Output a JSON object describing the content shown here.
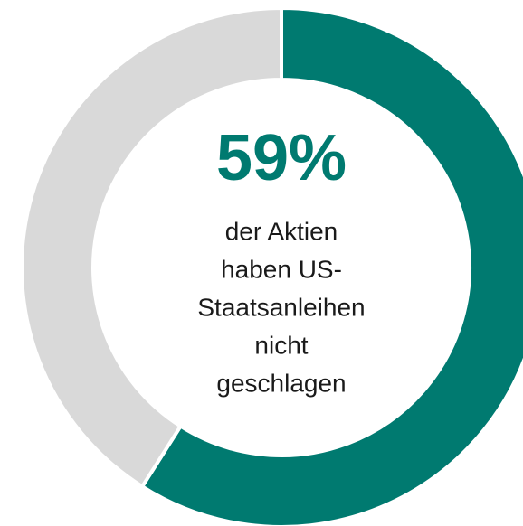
{
  "chart_data": {
    "type": "donut",
    "categories": [
      null,
      null
    ],
    "values": [
      59,
      41
    ],
    "value_labels": [
      "59%",
      null
    ],
    "colors": [
      "#007a70",
      "#d9d9d9"
    ],
    "center_text": [
      "der Aktien",
      "haben US-",
      "Staatsanleihen",
      "nicht",
      "geschlagen"
    ]
  }
}
